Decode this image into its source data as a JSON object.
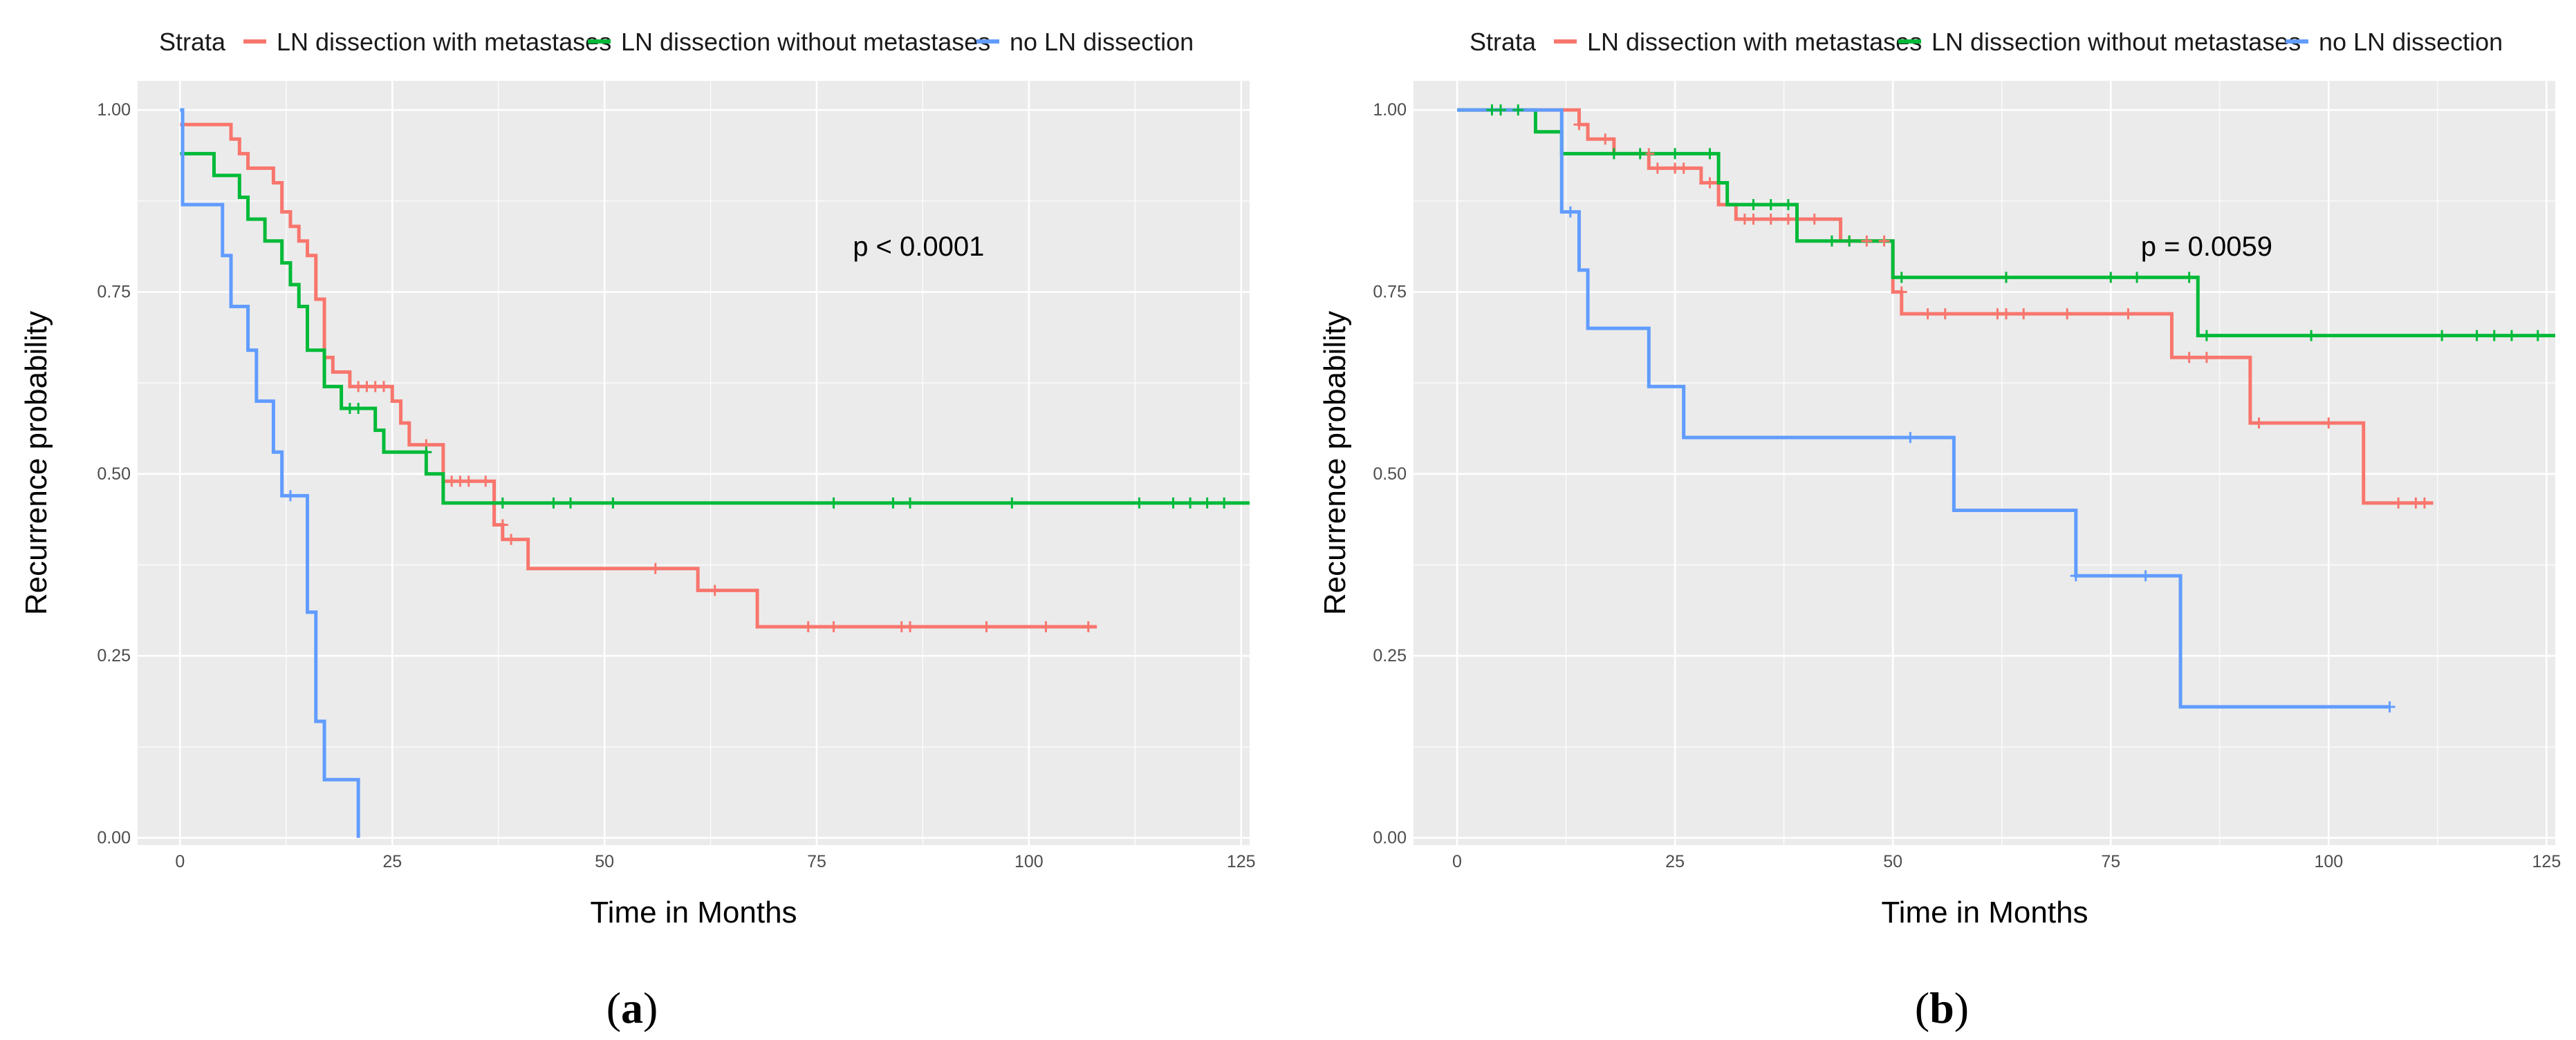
{
  "legend_title": "Strata",
  "colors": {
    "with_metastases": "#F8766D",
    "without_metastases": "#00BA38",
    "no_dissection": "#619CFF",
    "panel_bg": "#EBEBEB",
    "grid": "#FFFFFF"
  },
  "chart_data": [
    {
      "type": "line",
      "subtype": "kaplan-meier step",
      "panel_label": {
        "open": "(",
        "letter": "a",
        "close": ")"
      },
      "xlabel": "Time in Months",
      "ylabel": "Recurrence probability",
      "xlim": [
        -5,
        126
      ],
      "ylim": [
        -0.01,
        1.04
      ],
      "x_ticks": [
        0,
        25,
        50,
        75,
        100,
        125
      ],
      "y_ticks": [
        0.0,
        0.25,
        0.5,
        0.75,
        1.0
      ],
      "y_tick_labels": [
        "0.00",
        "0.25",
        "0.50",
        "0.75",
        "1.00"
      ],
      "annotation": {
        "text": "p < 0.0001",
        "x": 87,
        "y": 0.8
      },
      "legend": "top",
      "series": [
        {
          "name": "LN dissection with metastases",
          "color_key": "with_metastases",
          "steps": [
            [
              0,
              0.98
            ],
            [
              6,
              0.96
            ],
            [
              7,
              0.94
            ],
            [
              8,
              0.92
            ],
            [
              11,
              0.9
            ],
            [
              12,
              0.86
            ],
            [
              13,
              0.84
            ],
            [
              14,
              0.82
            ],
            [
              15,
              0.8
            ],
            [
              16,
              0.74
            ],
            [
              17,
              0.66
            ],
            [
              18,
              0.64
            ],
            [
              20,
              0.62
            ],
            [
              25,
              0.6
            ],
            [
              26,
              0.57
            ],
            [
              27,
              0.54
            ],
            [
              31,
              0.49
            ],
            [
              37,
              0.43
            ],
            [
              38,
              0.41
            ],
            [
              41,
              0.37
            ],
            [
              61,
              0.34
            ],
            [
              68,
              0.29
            ],
            [
              108,
              0.29
            ]
          ],
          "censors": [
            [
              21,
              0.62
            ],
            [
              22,
              0.62
            ],
            [
              23,
              0.62
            ],
            [
              24,
              0.62
            ],
            [
              29,
              0.54
            ],
            [
              32,
              0.49
            ],
            [
              33,
              0.49
            ],
            [
              34,
              0.49
            ],
            [
              36,
              0.49
            ],
            [
              38,
              0.43
            ],
            [
              39,
              0.41
            ],
            [
              56,
              0.37
            ],
            [
              63,
              0.34
            ],
            [
              74,
              0.29
            ],
            [
              77,
              0.29
            ],
            [
              85,
              0.29
            ],
            [
              86,
              0.29
            ],
            [
              95,
              0.29
            ],
            [
              102,
              0.29
            ],
            [
              107,
              0.29
            ]
          ]
        },
        {
          "name": "LN dissection without metastases",
          "color_key": "without_metastases",
          "steps": [
            [
              0,
              0.94
            ],
            [
              4,
              0.91
            ],
            [
              7,
              0.88
            ],
            [
              8,
              0.85
            ],
            [
              10,
              0.82
            ],
            [
              12,
              0.79
            ],
            [
              13,
              0.76
            ],
            [
              14,
              0.73
            ],
            [
              15,
              0.67
            ],
            [
              17,
              0.62
            ],
            [
              19,
              0.59
            ],
            [
              23,
              0.56
            ],
            [
              24,
              0.53
            ],
            [
              29,
              0.5
            ],
            [
              31,
              0.46
            ],
            [
              126,
              0.46
            ]
          ],
          "censors": [
            [
              20,
              0.59
            ],
            [
              21,
              0.59
            ],
            [
              29,
              0.53
            ],
            [
              38,
              0.46
            ],
            [
              44,
              0.46
            ],
            [
              46,
              0.46
            ],
            [
              51,
              0.46
            ],
            [
              77,
              0.46
            ],
            [
              84,
              0.46
            ],
            [
              86,
              0.46
            ],
            [
              98,
              0.46
            ],
            [
              113,
              0.46
            ],
            [
              117,
              0.46
            ],
            [
              119,
              0.46
            ],
            [
              121,
              0.46
            ],
            [
              123,
              0.46
            ]
          ]
        },
        {
          "name": "no LN dissection",
          "color_key": "no_dissection",
          "steps": [
            [
              0,
              1.0
            ],
            [
              0.3,
              0.87
            ],
            [
              5,
              0.8
            ],
            [
              6,
              0.73
            ],
            [
              8,
              0.67
            ],
            [
              9,
              0.6
            ],
            [
              11,
              0.53
            ],
            [
              12,
              0.47
            ],
            [
              15,
              0.31
            ],
            [
              16,
              0.16
            ],
            [
              17,
              0.08
            ],
            [
              21,
              0.0
            ]
          ],
          "censors": [
            [
              13,
              0.47
            ]
          ]
        }
      ]
    },
    {
      "type": "line",
      "subtype": "kaplan-meier step",
      "panel_label": {
        "open": "(",
        "letter": "b",
        "close": ")"
      },
      "xlabel": "Time in Months",
      "ylabel": "Recurrence probability",
      "xlim": [
        -5,
        126
      ],
      "ylim": [
        -0.01,
        1.04
      ],
      "x_ticks": [
        0,
        25,
        50,
        75,
        100,
        125
      ],
      "y_ticks": [
        0.0,
        0.25,
        0.5,
        0.75,
        1.0
      ],
      "y_tick_labels": [
        "0.00",
        "0.25",
        "0.50",
        "0.75",
        "1.00"
      ],
      "annotation": {
        "text": "p = 0.0059",
        "x": 86,
        "y": 0.8
      },
      "legend": "top",
      "series": [
        {
          "name": "LN dissection with metastases",
          "color_key": "with_metastases",
          "steps": [
            [
              0,
              1.0
            ],
            [
              14,
              0.98
            ],
            [
              15,
              0.96
            ],
            [
              18,
              0.94
            ],
            [
              22,
              0.92
            ],
            [
              28,
              0.9
            ],
            [
              30,
              0.87
            ],
            [
              32,
              0.85
            ],
            [
              44,
              0.82
            ],
            [
              50,
              0.75
            ],
            [
              51,
              0.72
            ],
            [
              82,
              0.66
            ],
            [
              91,
              0.57
            ],
            [
              104,
              0.46
            ],
            [
              112,
              0.46
            ]
          ],
          "censors": [
            [
              14,
              0.98
            ],
            [
              17,
              0.96
            ],
            [
              22,
              0.94
            ],
            [
              23,
              0.92
            ],
            [
              25,
              0.92
            ],
            [
              26,
              0.92
            ],
            [
              29,
              0.9
            ],
            [
              33,
              0.85
            ],
            [
              34,
              0.85
            ],
            [
              36,
              0.85
            ],
            [
              38,
              0.85
            ],
            [
              41,
              0.85
            ],
            [
              45,
              0.82
            ],
            [
              47,
              0.82
            ],
            [
              49,
              0.82
            ],
            [
              51,
              0.75
            ],
            [
              54,
              0.72
            ],
            [
              56,
              0.72
            ],
            [
              62,
              0.72
            ],
            [
              63,
              0.72
            ],
            [
              65,
              0.72
            ],
            [
              70,
              0.72
            ],
            [
              77,
              0.72
            ],
            [
              84,
              0.66
            ],
            [
              86,
              0.66
            ],
            [
              92,
              0.57
            ],
            [
              100,
              0.57
            ],
            [
              108,
              0.46
            ],
            [
              110,
              0.46
            ],
            [
              111,
              0.46
            ]
          ]
        },
        {
          "name": "LN dissection without metastases",
          "color_key": "without_metastases",
          "steps": [
            [
              0,
              1.0
            ],
            [
              9,
              0.97
            ],
            [
              12,
              0.94
            ],
            [
              30,
              0.9
            ],
            [
              31,
              0.87
            ],
            [
              39,
              0.82
            ],
            [
              50,
              0.77
            ],
            [
              85,
              0.69
            ],
            [
              126,
              0.69
            ]
          ],
          "censors": [
            [
              4,
              1.0
            ],
            [
              5,
              1.0
            ],
            [
              7,
              1.0
            ],
            [
              18,
              0.94
            ],
            [
              21,
              0.94
            ],
            [
              25,
              0.94
            ],
            [
              29,
              0.94
            ],
            [
              34,
              0.87
            ],
            [
              36,
              0.87
            ],
            [
              38,
              0.87
            ],
            [
              43,
              0.82
            ],
            [
              45,
              0.82
            ],
            [
              51,
              0.77
            ],
            [
              63,
              0.77
            ],
            [
              75,
              0.77
            ],
            [
              78,
              0.77
            ],
            [
              84,
              0.77
            ],
            [
              86,
              0.69
            ],
            [
              98,
              0.69
            ],
            [
              113,
              0.69
            ],
            [
              117,
              0.69
            ],
            [
              119,
              0.69
            ],
            [
              121,
              0.69
            ],
            [
              124,
              0.69
            ]
          ]
        },
        {
          "name": "no LN dissection",
          "color_key": "no_dissection",
          "steps": [
            [
              0,
              1.0
            ],
            [
              12,
              0.86
            ],
            [
              14,
              0.78
            ],
            [
              15,
              0.7
            ],
            [
              22,
              0.62
            ],
            [
              26,
              0.55
            ],
            [
              57,
              0.45
            ],
            [
              71,
              0.36
            ],
            [
              83,
              0.18
            ],
            [
              107,
              0.18
            ]
          ],
          "censors": [
            [
              13,
              0.86
            ],
            [
              52,
              0.55
            ],
            [
              71,
              0.36
            ],
            [
              79,
              0.36
            ],
            [
              107,
              0.18
            ]
          ]
        }
      ]
    }
  ]
}
